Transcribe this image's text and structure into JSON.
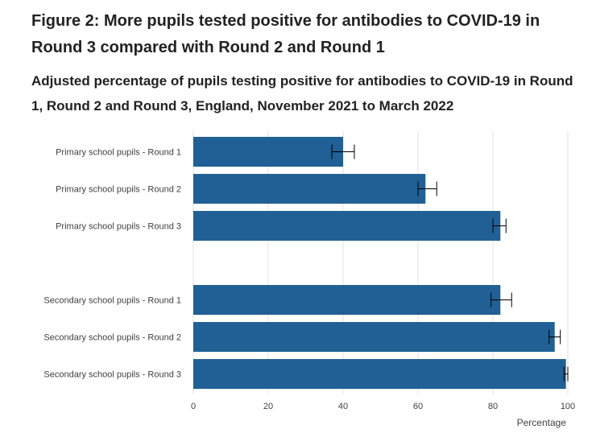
{
  "figure": {
    "title": "Figure 2: More pupils tested positive for antibodies to COVID-19 in Round 3 compared with Round 2 and Round 1",
    "subtitle": "Adjusted percentage of pupils testing positive for antibodies to COVID-19 in Round 1, Round 2 and Round 3, England, November 2021 to March 2022"
  },
  "colors": {
    "bar": "#206095",
    "grid": "#e0e0e0",
    "error_bar": "#000000"
  },
  "chart_data": {
    "type": "bar",
    "orientation": "horizontal",
    "title": "",
    "xlabel": "Percentage",
    "ylabel": "",
    "xlim": [
      0,
      100
    ],
    "ticks": [
      0,
      20,
      40,
      60,
      80,
      100
    ],
    "grid": true,
    "categories": [
      "Primary school pupils - Round 1",
      "Primary school pupils - Round 2",
      "Primary school pupils - Round 3",
      "",
      "Secondary school pupils - Round 1",
      "Secondary school pupils - Round 2",
      "Secondary school pupils - Round 3"
    ],
    "series": [
      {
        "values": [
          40.0,
          62.0,
          82.0,
          null,
          82.0,
          96.5,
          99.5
        ],
        "lower_ci": [
          37.0,
          60.0,
          80.0,
          null,
          79.5,
          95.0,
          99.0
        ],
        "upper_ci": [
          43.0,
          65.0,
          83.5,
          null,
          85.0,
          98.0,
          100.0
        ]
      }
    ]
  }
}
